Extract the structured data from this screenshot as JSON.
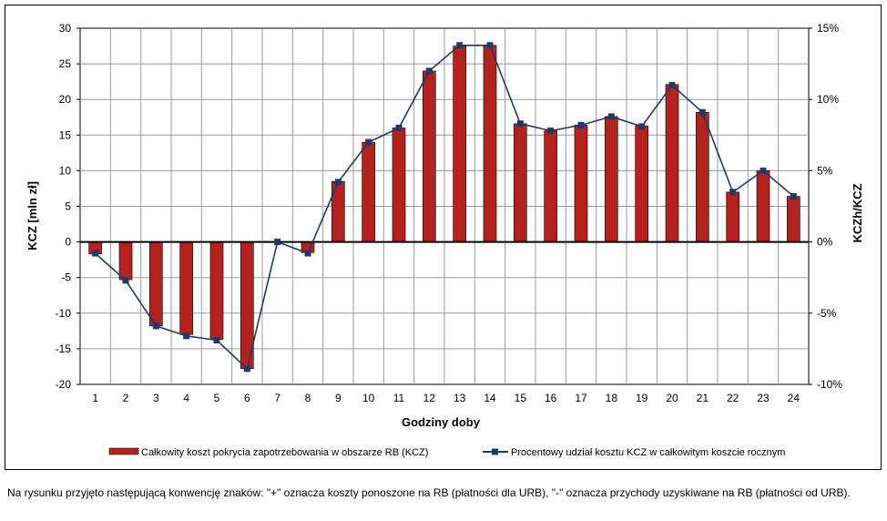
{
  "chart_data": {
    "type": "bar+line",
    "categories": [
      "1",
      "2",
      "3",
      "4",
      "5",
      "6",
      "7",
      "8",
      "9",
      "10",
      "11",
      "12",
      "13",
      "14",
      "15",
      "16",
      "17",
      "18",
      "19",
      "20",
      "21",
      "22",
      "23",
      "24"
    ],
    "xlabel": "Godziny doby",
    "ylabel_left": "KCZ [mln zł]",
    "ylabel_right": "KCZh/KCZ",
    "ylim_left": [
      -20,
      30
    ],
    "ylim_right": [
      -10,
      15
    ],
    "yticks_left": [
      "30",
      "25",
      "20",
      "15",
      "10",
      "5",
      "0",
      "-5",
      "-10",
      "-15",
      "-20"
    ],
    "yticks_right": [
      "15%",
      "10%",
      "5%",
      "0%",
      "-5%",
      "-10%"
    ],
    "grid": true,
    "legend_position": "bottom",
    "series": [
      {
        "name": "Całkowity koszt pokrycia zapotrzebowania w obszarze RB (KCZ)",
        "type": "bar",
        "axis": "left",
        "color": "#B5211C",
        "values": [
          -1.7,
          -5.3,
          -11.8,
          -13.0,
          -13.7,
          -17.8,
          0.0,
          -1.5,
          8.5,
          14.0,
          16.0,
          24.0,
          27.5,
          27.6,
          16.6,
          15.6,
          16.4,
          17.6,
          16.3,
          22.1,
          18.2,
          7.0,
          10.0,
          6.4
        ]
      },
      {
        "name": "Procentowy udział kosztu KCZ w całkowitym koszcie rocznym",
        "type": "line",
        "axis": "right",
        "color": "#1F3864",
        "values": [
          -0.8,
          -2.7,
          -5.9,
          -6.6,
          -6.9,
          -8.9,
          0.0,
          -0.8,
          4.2,
          7.0,
          8.0,
          12.0,
          13.8,
          13.8,
          8.3,
          7.8,
          8.2,
          8.8,
          8.1,
          11.0,
          9.1,
          3.5,
          5.0,
          3.2
        ]
      }
    ]
  },
  "footnote": "Na rysunku przyjęto następującą konwencję znaków: \"+\" oznacza koszty ponoszone na RB (płatności dla URB), \"-\" oznacza przychody uzyskiwane na RB (płatności od URB)."
}
